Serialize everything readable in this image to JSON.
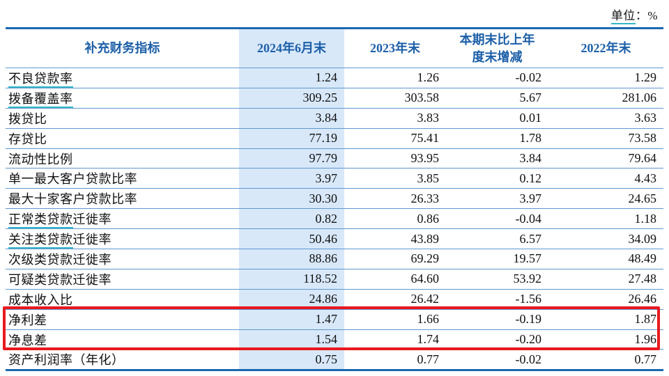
{
  "unit": {
    "term": "单位",
    "rest": "：%"
  },
  "table": {
    "headers": [
      {
        "label": "补充财务指标",
        "highlight": false
      },
      {
        "label": "2024年6月末",
        "highlight": true
      },
      {
        "label": "2023年末",
        "highlight": false
      },
      {
        "label": "本期末比上年\n度末增减",
        "highlight": false
      },
      {
        "label": "2022年末",
        "highlight": false
      }
    ],
    "rows": [
      {
        "label": "不良贷款率",
        "term": "不良贷款率",
        "values": [
          "1.24",
          "1.26",
          "-0.02",
          "1.29"
        ]
      },
      {
        "label": "拨备覆盖率",
        "term": "拨备覆盖率",
        "values": [
          "309.25",
          "303.58",
          "5.67",
          "281.06"
        ]
      },
      {
        "label": "拨贷比",
        "term": "",
        "values": [
          "3.84",
          "3.83",
          "0.01",
          "3.63"
        ]
      },
      {
        "label": "存贷比",
        "term": "",
        "values": [
          "77.19",
          "75.41",
          "1.78",
          "73.58"
        ]
      },
      {
        "label": "流动性比例",
        "term": "",
        "values": [
          "97.79",
          "93.95",
          "3.84",
          "79.64"
        ]
      },
      {
        "label": "单一最大客户贷款比率",
        "term": "",
        "values": [
          "3.97",
          "3.85",
          "0.12",
          "4.43"
        ]
      },
      {
        "label": "最大十家客户贷款比率",
        "term": "",
        "values": [
          "30.30",
          "26.33",
          "3.97",
          "24.65"
        ]
      },
      {
        "label": "正常类贷款迁徙率",
        "term": "正常类贷款",
        "values": [
          "0.82",
          "0.86",
          "-0.04",
          "1.18"
        ]
      },
      {
        "label": "关注类贷款迁徙率",
        "term": "关注类贷款",
        "values": [
          "50.46",
          "43.89",
          "6.57",
          "34.09"
        ]
      },
      {
        "label": "次级类贷款迁徙率",
        "term": "",
        "values": [
          "88.86",
          "69.29",
          "19.57",
          "48.49"
        ]
      },
      {
        "label": "可疑类贷款迁徙率",
        "term": "",
        "values": [
          "118.52",
          "64.60",
          "53.92",
          "27.48"
        ]
      },
      {
        "label": "成本收入比",
        "term": "",
        "values": [
          "24.86",
          "26.42",
          "-1.56",
          "26.46"
        ]
      },
      {
        "label": "净利差",
        "term": "",
        "values": [
          "1.47",
          "1.66",
          "-0.19",
          "1.87"
        ],
        "boxed": true
      },
      {
        "label": "净息差",
        "term": "",
        "values": [
          "1.54",
          "1.74",
          "-0.20",
          "1.96"
        ],
        "boxed": true
      },
      {
        "label": "资产利润率（年化）",
        "term": "",
        "values": [
          "0.75",
          "0.77",
          "-0.02",
          "0.77"
        ]
      }
    ]
  },
  "annotations": {
    "red_box_around_rows": [
      "净利差",
      "净息差"
    ]
  },
  "colors": {
    "accent_blue": "#1b67b0",
    "divider_blue": "#5e97cf",
    "header_text": "#1c5fa8",
    "column_highlight": "#d8e8f9",
    "term_underline": "#35b7c8",
    "highlight_box_red": "#e8191f"
  }
}
